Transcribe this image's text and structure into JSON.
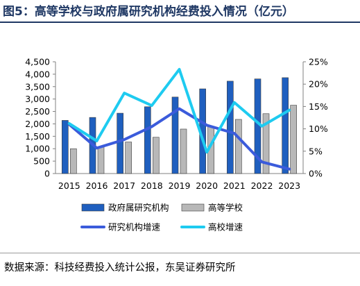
{
  "figure": {
    "title": "图5：高等学校与政府属研究机构经费投入情况（亿元）",
    "source": "数据来源：科技经费投入统计公报，东吴证券研究所"
  },
  "chart_data": {
    "type": "bar",
    "title": "图5：高等学校与政府属研究机构经费投入情况（亿元）",
    "xlabel": "",
    "ylabel": "",
    "categories": [
      "2015",
      "2016",
      "2017",
      "2018",
      "2019",
      "2020",
      "2021",
      "2022",
      "2023"
    ],
    "y_left": {
      "lim": [
        0,
        4500
      ],
      "ticks": [
        0,
        500,
        1000,
        1500,
        2000,
        2500,
        3000,
        3500,
        4000,
        4500
      ],
      "tick_labels": [
        "0",
        "500",
        "1,000",
        "1,500",
        "2,000",
        "2,500",
        "3,000",
        "3,500",
        "4,000",
        "4,500"
      ]
    },
    "y_right": {
      "lim": [
        0,
        25
      ],
      "ticks": [
        0,
        5,
        10,
        15,
        20,
        25
      ],
      "tick_labels": [
        "0%",
        "5%",
        "10%",
        "15%",
        "20%",
        "25%"
      ]
    },
    "series": [
      {
        "name": "政府属研究机构",
        "type": "bar",
        "axis": "left",
        "color": "#1f5fbf",
        "values": [
          2140,
          2260,
          2430,
          2690,
          3080,
          3410,
          3720,
          3810,
          3860
        ]
      },
      {
        "name": "高等学校",
        "type": "bar",
        "axis": "left",
        "color": "#b8b8b8",
        "values": [
          1000,
          1080,
          1270,
          1460,
          1790,
          1880,
          2180,
          2410,
          2750
        ]
      },
      {
        "name": "研究机构增速",
        "type": "line",
        "axis": "right",
        "color": "#3b5bdb",
        "values": [
          11.0,
          5.7,
          7.6,
          10.5,
          14.5,
          10.8,
          9.0,
          2.6,
          1.0
        ]
      },
      {
        "name": "高校增速",
        "type": "line",
        "axis": "right",
        "color": "#1ecbf0",
        "values": [
          11.2,
          7.3,
          18.0,
          15.2,
          23.3,
          4.8,
          15.9,
          10.6,
          14.2
        ]
      }
    ],
    "legend": {
      "placement": "bottom"
    },
    "grid": false
  }
}
